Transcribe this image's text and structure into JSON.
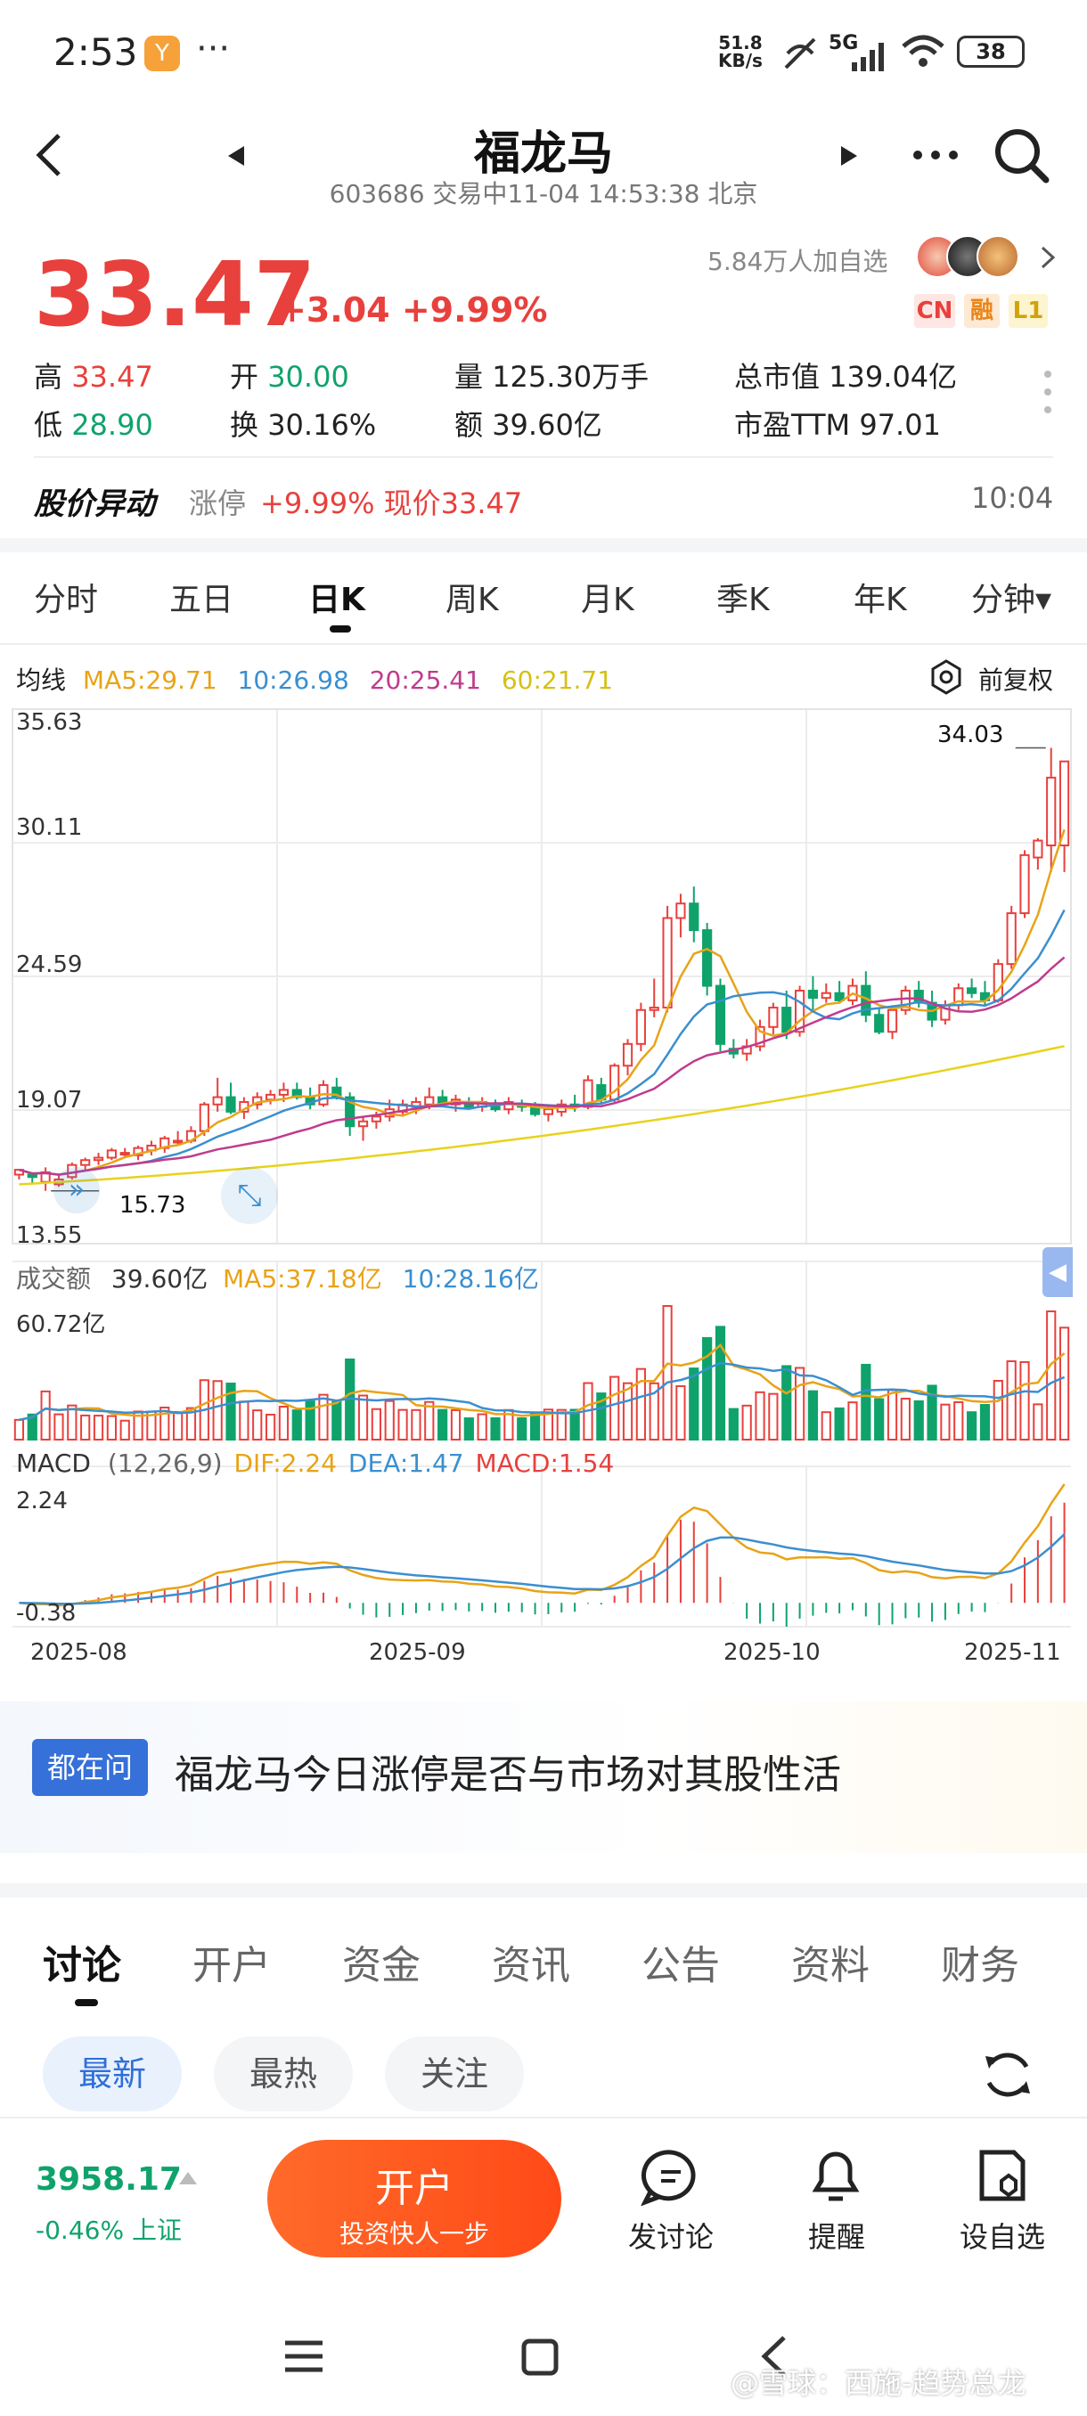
{
  "status_bar": {
    "time": "2:53",
    "app_badge": "Y",
    "dots": "···",
    "net_speed_value": "51.8",
    "net_speed_unit": "KB/s",
    "network": "5G",
    "battery": "38"
  },
  "header": {
    "title": "福龙马",
    "subtitle": "603686 交易中11-04 14:53:38 北京"
  },
  "quote": {
    "price": "33.47",
    "change": "+3.04 +9.99%",
    "watchers": "5.84万人加自选",
    "tags": [
      "CN",
      "融",
      "L1"
    ],
    "rows": [
      [
        {
          "label": "高",
          "value": "33.47",
          "color": "red"
        },
        {
          "label": "开",
          "value": "30.00",
          "color": "green"
        },
        {
          "label": "量",
          "value": "125.30万手",
          "color": "dark"
        },
        {
          "label": "总市值",
          "value": "139.04亿",
          "color": "dark"
        }
      ],
      [
        {
          "label": "低",
          "value": "28.90",
          "color": "green"
        },
        {
          "label": "换",
          "value": "30.16%",
          "color": "dark"
        },
        {
          "label": "额",
          "value": "39.60亿",
          "color": "dark"
        },
        {
          "label": "市盈TTM",
          "value": "97.01",
          "color": "dark"
        }
      ]
    ]
  },
  "alert": {
    "title": "股价异动",
    "type": "涨停",
    "detail": "+9.99% 现价33.47",
    "time": "10:04"
  },
  "chart_tabs": [
    "分时",
    "五日",
    "日K",
    "周K",
    "月K",
    "季K",
    "年K",
    "分钟▾"
  ],
  "active_chart_tab": "日K",
  "chart_toolbar": {
    "ma_label": "均线",
    "ma5": "MA5:29.71",
    "ma10": "10:26.98",
    "ma20": "20:25.41",
    "ma60": "60:21.71",
    "adjust": "前复权"
  },
  "volume_legend": {
    "label": "成交额",
    "value": "39.60亿",
    "ma5": "MA5:37.18亿",
    "ma10": "10:28.16亿",
    "max": "60.72亿"
  },
  "macd_legend": {
    "label": "MACD",
    "params": "(12,26,9)",
    "dif": "DIF:2.24",
    "dea": "DEA:1.47",
    "macd": "MACD:1.54",
    "top": "2.24",
    "bottom": "-0.38"
  },
  "colors": {
    "up": "#e8403c",
    "down": "#0fa36b",
    "ma5": "#e8a317",
    "ma10": "#3a8fd0",
    "ma20": "#c03b8e",
    "ma60": "#e8d21c"
  },
  "chart_data": {
    "type": "candlestick",
    "y_ticks": [
      "35.63",
      "30.11",
      "24.59",
      "19.07",
      "13.55"
    ],
    "ylim": [
      13.55,
      35.63
    ],
    "x_ticks": [
      "2025-08",
      "2025-09",
      "2025-10",
      "2025-11"
    ],
    "high_annotation": "34.03",
    "low_annotation": "15.73",
    "candles": [
      [
        16.4,
        16.6,
        16.2,
        16.6
      ],
      [
        16.4,
        16.5,
        16.0,
        16.3
      ],
      [
        16.1,
        16.7,
        15.73,
        16.5
      ],
      [
        16.0,
        16.4,
        15.9,
        16.2
      ],
      [
        16.3,
        16.9,
        16.2,
        16.8
      ],
      [
        16.8,
        17.1,
        16.6,
        17.0
      ],
      [
        17.0,
        17.3,
        16.8,
        17.1
      ],
      [
        17.1,
        17.5,
        17.0,
        17.4
      ],
      [
        17.3,
        17.5,
        17.1,
        17.3
      ],
      [
        17.2,
        17.6,
        17.0,
        17.5
      ],
      [
        17.4,
        17.8,
        17.2,
        17.6
      ],
      [
        17.5,
        18.0,
        17.3,
        17.9
      ],
      [
        17.8,
        18.2,
        17.6,
        17.8
      ],
      [
        17.8,
        18.4,
        17.7,
        18.2
      ],
      [
        18.2,
        19.4,
        18.0,
        19.3
      ],
      [
        19.3,
        20.4,
        19.0,
        19.6
      ],
      [
        19.6,
        20.2,
        18.9,
        19.0
      ],
      [
        19.0,
        19.6,
        18.7,
        19.4
      ],
      [
        19.3,
        19.8,
        19.1,
        19.6
      ],
      [
        19.5,
        19.9,
        19.3,
        19.7
      ],
      [
        19.7,
        20.2,
        19.4,
        19.9
      ],
      [
        19.9,
        20.2,
        19.5,
        19.6
      ],
      [
        19.6,
        20.0,
        19.1,
        19.3
      ],
      [
        19.3,
        20.3,
        19.2,
        20.1
      ],
      [
        20.0,
        20.4,
        19.5,
        19.6
      ],
      [
        19.6,
        19.8,
        18.0,
        18.4
      ],
      [
        18.4,
        18.8,
        17.8,
        18.6
      ],
      [
        18.6,
        19.0,
        18.3,
        18.8
      ],
      [
        18.8,
        19.5,
        18.6,
        19.1
      ],
      [
        19.0,
        19.5,
        18.8,
        19.3
      ],
      [
        19.2,
        19.6,
        18.9,
        19.4
      ],
      [
        19.3,
        20.0,
        19.1,
        19.6
      ],
      [
        19.6,
        19.9,
        19.2,
        19.3
      ],
      [
        19.3,
        19.7,
        19.0,
        19.5
      ],
      [
        19.4,
        19.6,
        19.1,
        19.2
      ],
      [
        19.2,
        19.6,
        19.0,
        19.4
      ],
      [
        19.3,
        19.5,
        19.0,
        19.1
      ],
      [
        19.1,
        19.6,
        18.9,
        19.4
      ],
      [
        19.3,
        19.5,
        19.0,
        19.2
      ],
      [
        19.2,
        19.4,
        18.8,
        18.9
      ],
      [
        18.9,
        19.3,
        18.6,
        19.1
      ],
      [
        19.0,
        19.5,
        18.8,
        19.3
      ],
      [
        19.3,
        19.7,
        19.0,
        19.2
      ],
      [
        19.2,
        20.5,
        19.1,
        20.3
      ],
      [
        20.1,
        20.4,
        19.3,
        19.5
      ],
      [
        19.5,
        21.0,
        19.4,
        20.9
      ],
      [
        20.9,
        22.0,
        20.5,
        21.8
      ],
      [
        21.8,
        23.5,
        21.5,
        23.2
      ],
      [
        23.2,
        24.5,
        22.9,
        23.3
      ],
      [
        23.3,
        27.5,
        23.1,
        27.0
      ],
      [
        27.0,
        28.0,
        26.2,
        27.6
      ],
      [
        27.6,
        28.3,
        26.0,
        26.5
      ],
      [
        26.5,
        26.8,
        23.8,
        24.2
      ],
      [
        24.2,
        24.5,
        21.5,
        21.8
      ],
      [
        21.6,
        22.0,
        21.2,
        21.4
      ],
      [
        21.4,
        22.0,
        21.1,
        21.7
      ],
      [
        21.7,
        22.8,
        21.5,
        22.5
      ],
      [
        22.5,
        23.5,
        22.2,
        23.3
      ],
      [
        23.3,
        24.0,
        22.0,
        22.3
      ],
      [
        22.3,
        24.2,
        22.1,
        24.0
      ],
      [
        24.0,
        24.6,
        23.2,
        23.7
      ],
      [
        23.7,
        24.3,
        23.5,
        23.9
      ],
      [
        23.9,
        24.4,
        23.5,
        23.6
      ],
      [
        23.6,
        24.5,
        23.4,
        24.2
      ],
      [
        24.2,
        24.8,
        22.7,
        23.0
      ],
      [
        23.0,
        23.3,
        22.2,
        22.3
      ],
      [
        22.3,
        23.4,
        22.0,
        23.2
      ],
      [
        23.2,
        24.2,
        23.0,
        24.0
      ],
      [
        24.0,
        24.4,
        23.3,
        23.5
      ],
      [
        23.5,
        24.0,
        22.5,
        22.8
      ],
      [
        22.8,
        23.6,
        22.6,
        23.4
      ],
      [
        23.4,
        24.3,
        23.2,
        24.1
      ],
      [
        24.1,
        24.5,
        23.7,
        23.9
      ],
      [
        23.9,
        24.4,
        23.4,
        23.6
      ],
      [
        23.6,
        25.3,
        23.5,
        25.1
      ],
      [
        25.1,
        27.5,
        24.9,
        27.2
      ],
      [
        27.2,
        29.8,
        27.0,
        29.6
      ],
      [
        29.5,
        30.3,
        29.0,
        30.2
      ],
      [
        30.0,
        34.03,
        28.9,
        32.8
      ],
      [
        30.0,
        33.47,
        28.9,
        33.47
      ]
    ]
  }
}
